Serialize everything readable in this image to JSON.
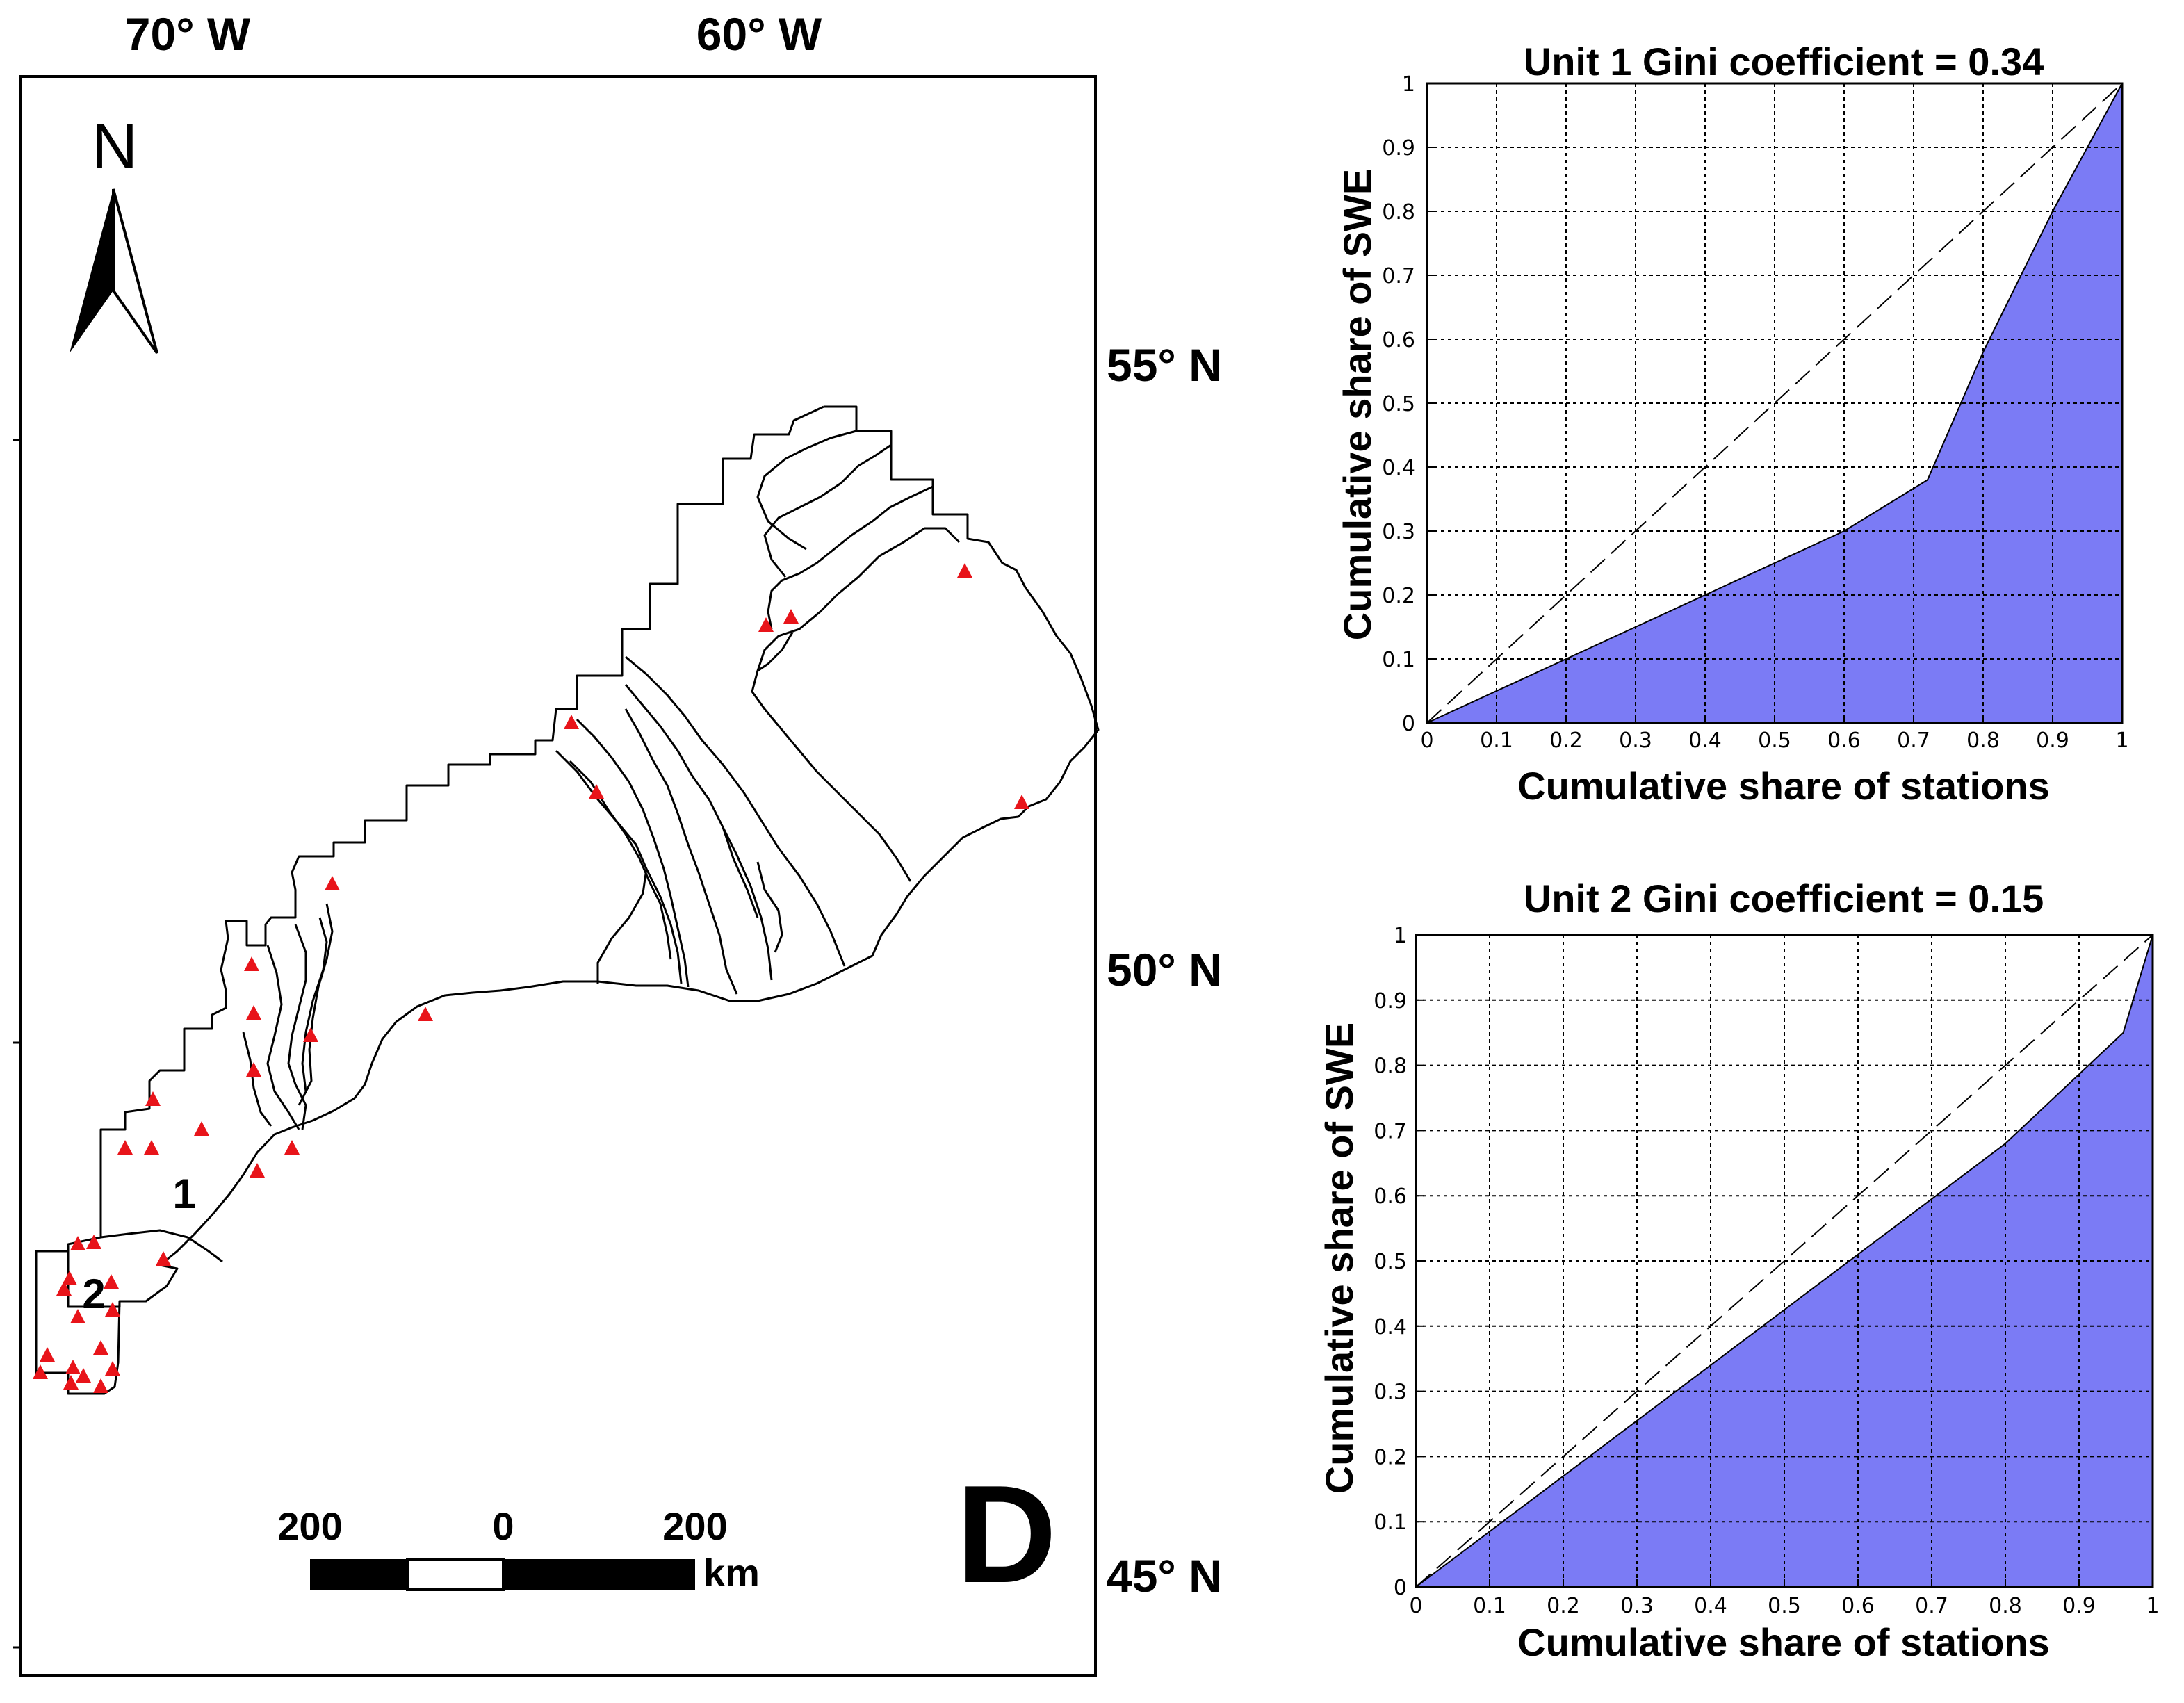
{
  "map": {
    "lon_labels": [
      "70° W",
      "60° W"
    ],
    "lat_labels": [
      "55° N",
      "50° N",
      "45° N"
    ],
    "north_label": "N",
    "panel_letter": "D",
    "unit_labels": [
      "1",
      "2"
    ],
    "scale_bar": {
      "labels": [
        "200",
        "0",
        "200"
      ],
      "unit": "km"
    },
    "station_color": "#e8141a",
    "outline_color": "#000000"
  },
  "chart_data": [
    {
      "type": "area",
      "title": "Unit 1 Gini coefficient = 0.34",
      "xlabel": "Cumulative share of stations",
      "ylabel": "Cumulative share of SWE",
      "xlim": [
        0,
        1
      ],
      "ylim": [
        0,
        1
      ],
      "xticks": [
        "0",
        "0.1",
        "0.2",
        "0.3",
        "0.4",
        "0.5",
        "0.6",
        "0.7",
        "0.8",
        "0.9",
        "1"
      ],
      "yticks": [
        "0",
        "0.1",
        "0.2",
        "0.3",
        "0.4",
        "0.5",
        "0.6",
        "0.7",
        "0.8",
        "0.9",
        "1"
      ],
      "grid": true,
      "fill_color": "#7b7bf5",
      "equality_line": [
        [
          0,
          0
        ],
        [
          1,
          1
        ]
      ],
      "lorenz_curve": [
        [
          0,
          0
        ],
        [
          0.2,
          0.1
        ],
        [
          0.4,
          0.2
        ],
        [
          0.6,
          0.3
        ],
        [
          0.72,
          0.38
        ],
        [
          0.8,
          0.58
        ],
        [
          0.9,
          0.8
        ],
        [
          1,
          1
        ]
      ]
    },
    {
      "type": "area",
      "title": "Unit 2 Gini coefficient = 0.15",
      "xlabel": "Cumulative share of stations",
      "ylabel": "Cumulative share of SWE",
      "xlim": [
        0,
        1
      ],
      "ylim": [
        0,
        1
      ],
      "xticks": [
        "0",
        "0.1",
        "0.2",
        "0.3",
        "0.4",
        "0.5",
        "0.6",
        "0.7",
        "0.8",
        "0.9",
        "1"
      ],
      "yticks": [
        "0",
        "0.1",
        "0.2",
        "0.3",
        "0.4",
        "0.5",
        "0.6",
        "0.7",
        "0.8",
        "0.9",
        "1"
      ],
      "grid": true,
      "fill_color": "#7b7bf5",
      "equality_line": [
        [
          0,
          0
        ],
        [
          1,
          1
        ]
      ],
      "lorenz_curve": [
        [
          0,
          0
        ],
        [
          0.2,
          0.17
        ],
        [
          0.4,
          0.34
        ],
        [
          0.6,
          0.51
        ],
        [
          0.8,
          0.68
        ],
        [
          0.96,
          0.85
        ],
        [
          1,
          1
        ]
      ]
    }
  ]
}
